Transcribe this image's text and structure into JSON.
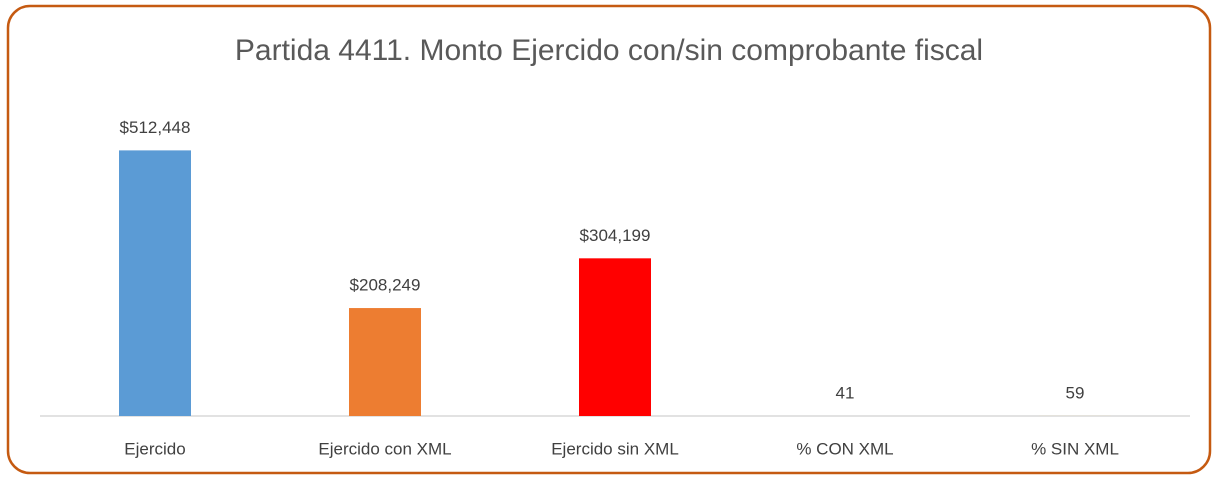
{
  "chart_data": {
    "type": "bar",
    "title": "Partida 4411. Monto Ejercido con/sin comprobante fiscal",
    "categories": [
      "Ejercido",
      "Ejercido con XML",
      "Ejercido sin XML",
      "% CON XML",
      "% SIN XML"
    ],
    "values": [
      512448,
      208249,
      304199,
      41,
      59
    ],
    "value_labels": [
      "$512,448",
      "$208,249",
      "$304,199",
      "41",
      "59"
    ],
    "colors": [
      "#5b9bd5",
      "#ed7d31",
      "#ff0000",
      "#a5a5a5",
      "#ffc000"
    ],
    "ylim": [
      0,
      600000
    ]
  }
}
